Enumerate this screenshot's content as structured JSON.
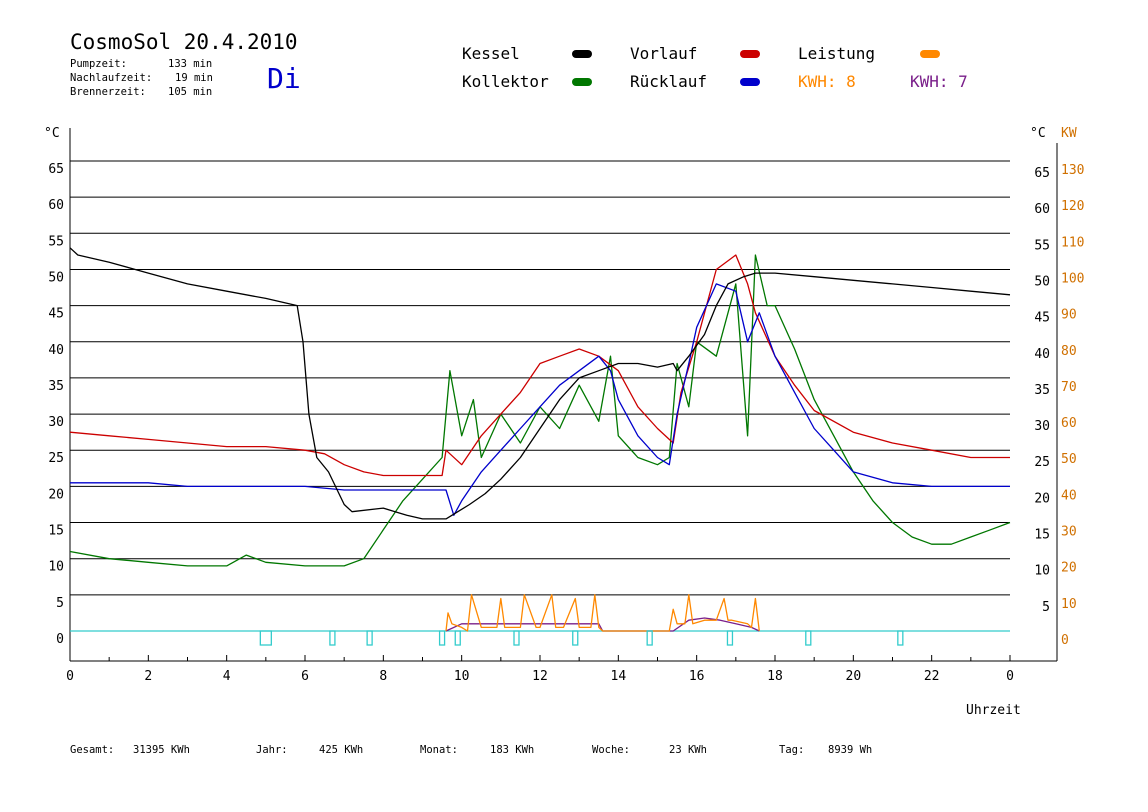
{
  "header": {
    "title": "CosmoSol 20.4.2010",
    "day": "Di",
    "stats": [
      {
        "label": "Pumpzeit:",
        "value": "133 min"
      },
      {
        "label": "Nachlaufzeit:",
        "value": "19 min"
      },
      {
        "label": "Brennerzeit:",
        "value": "105 min"
      }
    ]
  },
  "legend": {
    "kessel": "Kessel",
    "kollektor": "Kollektor",
    "vorlauf": "Vorlauf",
    "ruecklauf": "Rücklauf",
    "leistung": "Leistung",
    "kwh_orange": "KWH: 8",
    "kwh_purple": "KWH: 7"
  },
  "footer": [
    {
      "label": "Gesamt:",
      "value": "31395 KWh"
    },
    {
      "label": "Jahr:",
      "value": "425 KWh"
    },
    {
      "label": "Monat:",
      "value": "183 KWh"
    },
    {
      "label": "Woche:",
      "value": "23 KWh"
    },
    {
      "label": "Tag:",
      "value": "8939 Wh"
    }
  ],
  "colors": {
    "kessel": "#000000",
    "kollektor": "#007700",
    "vorlauf": "#cc0000",
    "ruecklauf": "#0000cc",
    "leistung": "#ff8800",
    "kwh_purple": "#7a1f8a",
    "pump": "#33cccc",
    "kw_axis": "#d07000"
  },
  "chart_data": {
    "type": "line",
    "xlabel": "Uhrzeit",
    "ylabel_left": "°C",
    "ylabel_right": "°C",
    "ylabel_kw": "KW",
    "xlim": [
      0,
      24
    ],
    "ylim": [
      0,
      65
    ],
    "kw_lim": [
      0,
      130
    ],
    "x_ticks": [
      "0",
      "2",
      "4",
      "6",
      "8",
      "10",
      "12",
      "14",
      "16",
      "18",
      "20",
      "22",
      "0"
    ],
    "y_ticks_left": [
      "0",
      "5",
      "10",
      "15",
      "20",
      "25",
      "30",
      "35",
      "40",
      "45",
      "50",
      "55",
      "60",
      "65"
    ],
    "y_ticks_right": [
      "5",
      "10",
      "15",
      "20",
      "25",
      "30",
      "35",
      "40",
      "45",
      "50",
      "55",
      "60",
      "65"
    ],
    "kw_ticks": [
      "0",
      "10",
      "20",
      "30",
      "40",
      "50",
      "60",
      "70",
      "80",
      "90",
      "100",
      "110",
      "120",
      "130"
    ],
    "grid": "horizontal",
    "series": [
      {
        "name": "Kessel",
        "x": [
          0,
          0.2,
          1,
          2,
          3,
          4,
          5,
          5.8,
          5.95,
          6.1,
          6.3,
          6.6,
          7,
          7.2,
          8,
          8.3,
          8.6,
          9,
          9.6,
          9.9,
          10.2,
          10.6,
          11,
          11.5,
          12,
          12.5,
          13,
          13.5,
          14,
          14.5,
          15,
          15.4,
          15.5,
          15.8,
          16.2,
          16.5,
          16.8,
          17.2,
          17.5,
          18,
          19,
          20,
          21,
          22,
          23,
          24
        ],
        "y": [
          53,
          52,
          51,
          49.5,
          48,
          47,
          46,
          45,
          40,
          30,
          24,
          22,
          17.5,
          16.5,
          17,
          16.5,
          16,
          15.5,
          15.5,
          16.5,
          17.5,
          19,
          21,
          24,
          28,
          32,
          35,
          36,
          37,
          37,
          36.5,
          37,
          36,
          38,
          41,
          45,
          48,
          49,
          49.5,
          49.5,
          49,
          48.5,
          48,
          47.5,
          47,
          46.5
        ]
      },
      {
        "name": "Kollektor",
        "x": [
          0,
          1,
          2,
          3,
          4,
          4.5,
          5,
          6,
          6.5,
          7,
          7.5,
          8,
          8.5,
          9,
          9.5,
          9.7,
          10,
          10.3,
          10.5,
          11,
          11.5,
          12,
          12.5,
          13,
          13.5,
          13.8,
          14,
          14.5,
          15,
          15.3,
          15.5,
          15.8,
          16,
          16.5,
          17,
          17.3,
          17.5,
          17.8,
          18,
          18.5,
          19,
          19.5,
          20,
          20.5,
          21,
          21.5,
          22,
          22.5,
          23,
          23.5,
          24
        ],
        "y": [
          11,
          10,
          9.5,
          9,
          9,
          10.5,
          9.5,
          9,
          9,
          9,
          10,
          14,
          18,
          21,
          24,
          36,
          27,
          32,
          24,
          30,
          26,
          31,
          28,
          34,
          29,
          38,
          27,
          24,
          23,
          24,
          37,
          31,
          40,
          38,
          48,
          27,
          52,
          45,
          45,
          39,
          32,
          27,
          22,
          18,
          15,
          13,
          12,
          12,
          13,
          14,
          15
        ]
      },
      {
        "name": "Vorlauf",
        "x": [
          0,
          1,
          2,
          3,
          4,
          5,
          6,
          6.5,
          7,
          7.5,
          8,
          8.5,
          9,
          9.5,
          9.6,
          10,
          10.5,
          11,
          11.5,
          12,
          12.5,
          13,
          13.5,
          14,
          14.5,
          15,
          15.4,
          15.6,
          16,
          16.5,
          17,
          17.3,
          17.5,
          18,
          18.5,
          19,
          20,
          21,
          22,
          23,
          24
        ],
        "y": [
          27.5,
          27,
          26.5,
          26,
          25.5,
          25.5,
          25,
          24.5,
          23,
          22,
          21.5,
          21.5,
          21.5,
          21.5,
          25,
          23,
          27,
          30,
          33,
          37,
          38,
          39,
          38,
          36,
          31,
          28,
          26,
          33,
          40,
          50,
          52,
          48,
          44,
          38,
          34,
          30.5,
          27.5,
          26,
          25,
          24,
          24
        ]
      },
      {
        "name": "Rücklauf",
        "x": [
          0,
          1,
          2,
          3,
          4,
          5,
          6,
          7,
          8,
          9,
          9.6,
          9.8,
          10,
          10.5,
          11,
          11.5,
          12,
          12.5,
          13,
          13.5,
          13.8,
          14,
          14.5,
          15,
          15.3,
          15.5,
          15.8,
          16,
          16.5,
          17,
          17.3,
          17.6,
          18,
          18.5,
          19,
          19.5,
          20,
          21,
          22,
          23,
          24
        ],
        "y": [
          20.5,
          20.5,
          20.5,
          20,
          20,
          20,
          20,
          19.5,
          19.5,
          19.5,
          19.5,
          16,
          18,
          22,
          25,
          28,
          31,
          34,
          36,
          38,
          36,
          32,
          27,
          24,
          23,
          30,
          37,
          42,
          48,
          47,
          40,
          44,
          38,
          33,
          28,
          25,
          22,
          20.5,
          20,
          20,
          20
        ]
      },
      {
        "name": "Leistung",
        "x": [
          9.6,
          9.65,
          9.75,
          10,
          10.15,
          10.25,
          10.5,
          10.9,
          11,
          11.1,
          11.5,
          11.6,
          11.9,
          12,
          12.3,
          12.4,
          12.6,
          12.9,
          13,
          13.3,
          13.4,
          13.5,
          13.6,
          15.3,
          15.4,
          15.5,
          15.7,
          15.8,
          15.9,
          16.2,
          16.5,
          16.7,
          16.8,
          16.9,
          17.3,
          17.4,
          17.5,
          17.6
        ],
        "y": [
          0,
          2.5,
          1,
          0.5,
          0,
          5,
          0.5,
          0.5,
          4.5,
          0.5,
          0.5,
          5,
          0.5,
          0.5,
          5,
          0.5,
          0.5,
          4.5,
          0.5,
          0.5,
          5,
          0.5,
          0,
          0,
          3,
          1,
          1,
          5,
          1,
          1.5,
          1.5,
          4.5,
          1.5,
          1.5,
          1,
          0.5,
          4.5,
          0
        ]
      },
      {
        "name": "KWH",
        "x": [
          9.6,
          10,
          10.5,
          11,
          11.5,
          12,
          12.5,
          13,
          13.5,
          13.6,
          15.4,
          15.8,
          16.2,
          16.6,
          17,
          17.4,
          17.6
        ],
        "y": [
          0,
          1,
          1,
          1,
          1,
          1,
          1,
          1,
          1,
          0,
          0,
          1.5,
          1.8,
          1.5,
          1,
          0.5,
          0
        ]
      },
      {
        "name": "Pumpe",
        "x": [
          0,
          24
        ],
        "y": [
          0,
          0
        ]
      }
    ],
    "pump_markers_x": [
      5,
      6.7,
      7.65,
      9.5,
      9.9,
      11.4,
      12.9,
      14.8,
      16.85,
      18.85,
      21.2
    ]
  }
}
